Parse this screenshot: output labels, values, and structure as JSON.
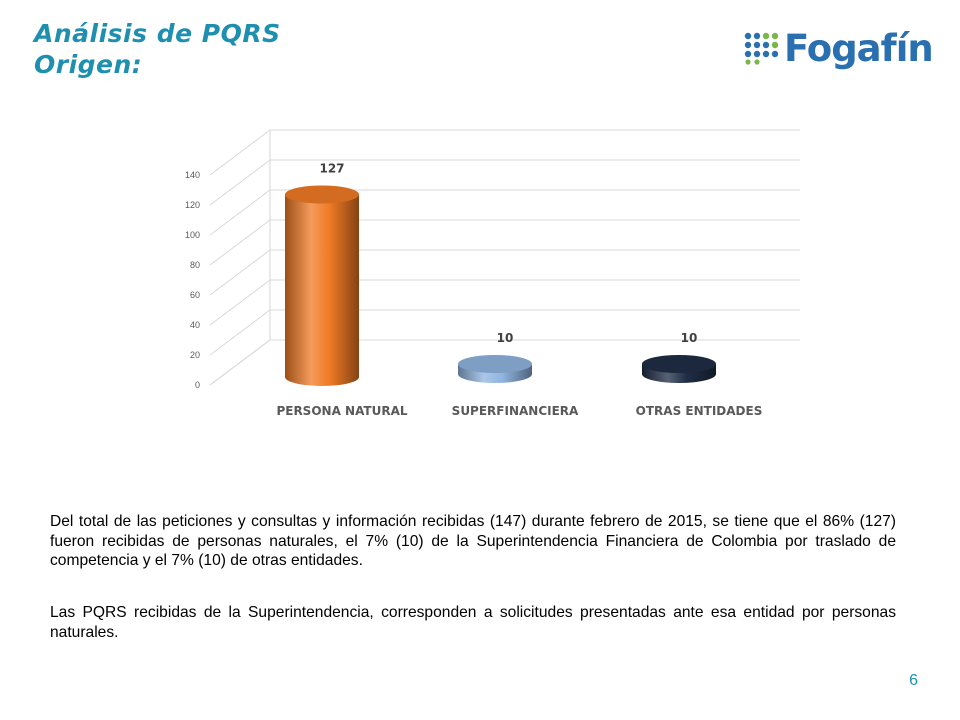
{
  "header": {
    "title_line1": "Análisis de PQRS",
    "title_line2": "Origen:",
    "logo_text": "Fogafín"
  },
  "colors": {
    "title": "#1f8fb0",
    "logo": "#2a6fb0",
    "bar_orange": "#f07a25",
    "bar_lightblue": "#8fb4df",
    "bar_navy": "#1f2d45"
  },
  "chart_data": {
    "type": "bar",
    "style": "3d-cylinder",
    "categories": [
      "PERSONA NATURAL",
      "SUPERFINANCIERA",
      "OTRAS ENTIDADES"
    ],
    "values": [
      127,
      10,
      10
    ],
    "data_labels": [
      "127",
      "10",
      "10"
    ],
    "bar_colors": [
      "#f07a25",
      "#8fb4df",
      "#1f2d45"
    ],
    "yticks": [
      "0",
      "20",
      "40",
      "60",
      "80",
      "100",
      "120",
      "140"
    ],
    "ylim": [
      0,
      140
    ],
    "grid": true,
    "legend": "none"
  },
  "body": {
    "paragraph1": "Del total de las peticiones y consultas y información recibidas (147) durante febrero de 2015, se tiene que el 86% (127) fueron recibidas de personas naturales, el 7% (10) de la Superintendencia Financiera de Colombia por traslado de competencia y el 7% (10) de otras entidades.",
    "paragraph2": "Las PQRS recibidas de la Superintendencia, corresponden a solicitudes presentadas ante esa entidad por personas naturales."
  },
  "footer": {
    "page_number": "6"
  }
}
